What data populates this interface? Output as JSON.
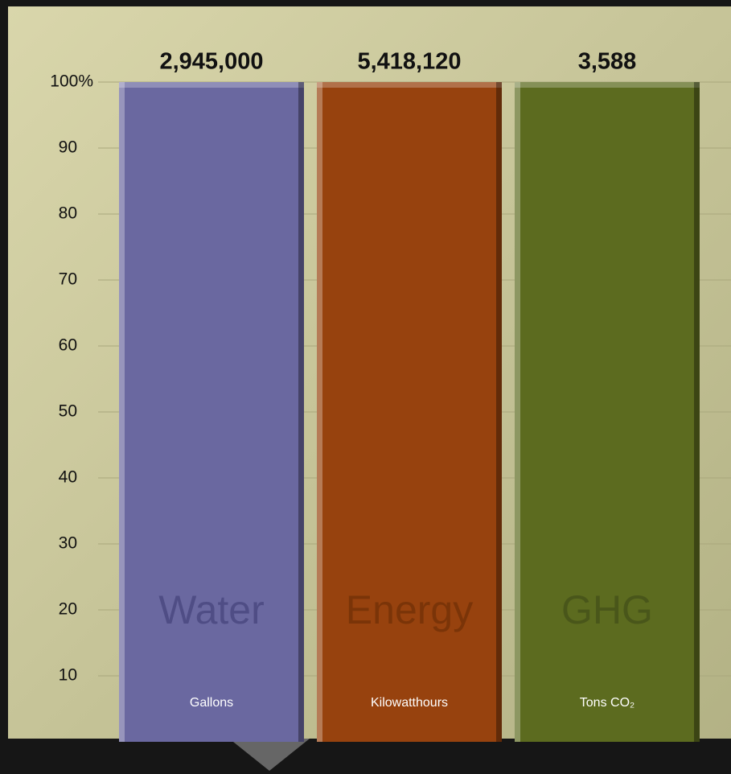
{
  "chart_data": {
    "type": "bar",
    "categories": [
      "Water",
      "Energy",
      "GHG"
    ],
    "units": [
      "Gallons",
      "Kilowatthours",
      "Tons CO₂"
    ],
    "series": [
      {
        "values": [
          100,
          100,
          100
        ],
        "colors": [
          "#6a68a0",
          "#97420e",
          "#5c6b1f"
        ],
        "value_labels": [
          "2,945,000",
          "5,418,120",
          "3,588"
        ]
      }
    ],
    "ylim": [
      0,
      100
    ],
    "yticks": [
      10,
      20,
      30,
      40,
      50,
      60,
      70,
      80,
      90,
      {
        "value": 100,
        "label": "100%"
      }
    ],
    "grid": true
  }
}
